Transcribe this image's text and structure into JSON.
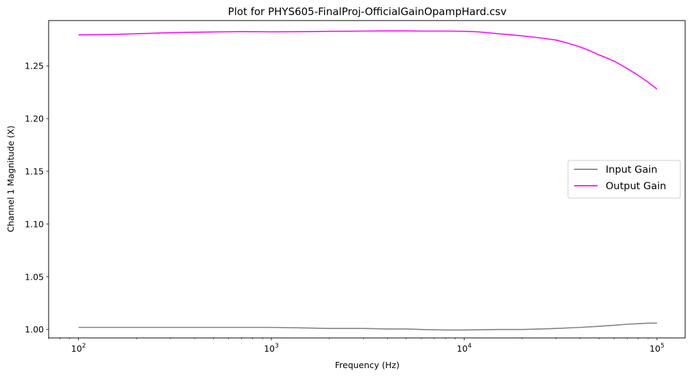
{
  "chart_data": {
    "type": "line",
    "title": "Plot for PHYS605-FinalProj-OfficialGainOpampHard.csv",
    "xlabel": "Frequency (Hz)",
    "ylabel": "Channel 1 Magnitude (X)",
    "x_scale": "log",
    "xlim": [
      70,
      140000
    ],
    "ylim": [
      0.992,
      1.293
    ],
    "x_ticks": [
      {
        "value": 100,
        "base": "10",
        "exp": "2"
      },
      {
        "value": 1000,
        "base": "10",
        "exp": "3"
      },
      {
        "value": 10000,
        "base": "10",
        "exp": "4"
      },
      {
        "value": 100000,
        "base": "10",
        "exp": "5"
      }
    ],
    "y_ticks": [
      {
        "value": 1.0,
        "label": "1.00"
      },
      {
        "value": 1.05,
        "label": "1.05"
      },
      {
        "value": 1.1,
        "label": "1.10"
      },
      {
        "value": 1.15,
        "label": "1.15"
      },
      {
        "value": 1.2,
        "label": "1.20"
      },
      {
        "value": 1.25,
        "label": "1.25"
      }
    ],
    "grid": false,
    "legend_position": "center-right",
    "series": [
      {
        "name": "Input Gain",
        "color": "#808080",
        "x": [
          100,
          200,
          300,
          500,
          1000,
          1500,
          2000,
          3000,
          4000,
          5000,
          6000,
          8000,
          10000,
          15000,
          20000,
          25000,
          30000,
          40000,
          50000,
          60000,
          70000,
          80000,
          90000,
          100000
        ],
        "values": [
          1.002,
          1.002,
          1.002,
          1.002,
          1.002,
          1.0015,
          1.001,
          1.001,
          1.0005,
          1.0005,
          1.0,
          0.9995,
          0.9995,
          1.0,
          1.0,
          1.0005,
          1.001,
          1.002,
          1.003,
          1.004,
          1.005,
          1.0055,
          1.006,
          1.006
        ]
      },
      {
        "name": "Output Gain",
        "color": "#ff00ff",
        "x": [
          100,
          150,
          200,
          300,
          500,
          700,
          1000,
          1500,
          2000,
          3000,
          4000,
          5000,
          6000,
          8000,
          10000,
          12000,
          15000,
          20000,
          25000,
          30000,
          35000,
          40000,
          45000,
          50000,
          60000,
          70000,
          80000,
          90000,
          100000
        ],
        "values": [
          1.2795,
          1.2798,
          1.2805,
          1.2815,
          1.2822,
          1.2825,
          1.2823,
          1.2825,
          1.2828,
          1.283,
          1.2832,
          1.2832,
          1.283,
          1.283,
          1.2828,
          1.2822,
          1.2805,
          1.2785,
          1.2765,
          1.2745,
          1.2712,
          1.268,
          1.2642,
          1.2605,
          1.2545,
          1.2475,
          1.241,
          1.2345,
          1.228
        ]
      }
    ]
  }
}
